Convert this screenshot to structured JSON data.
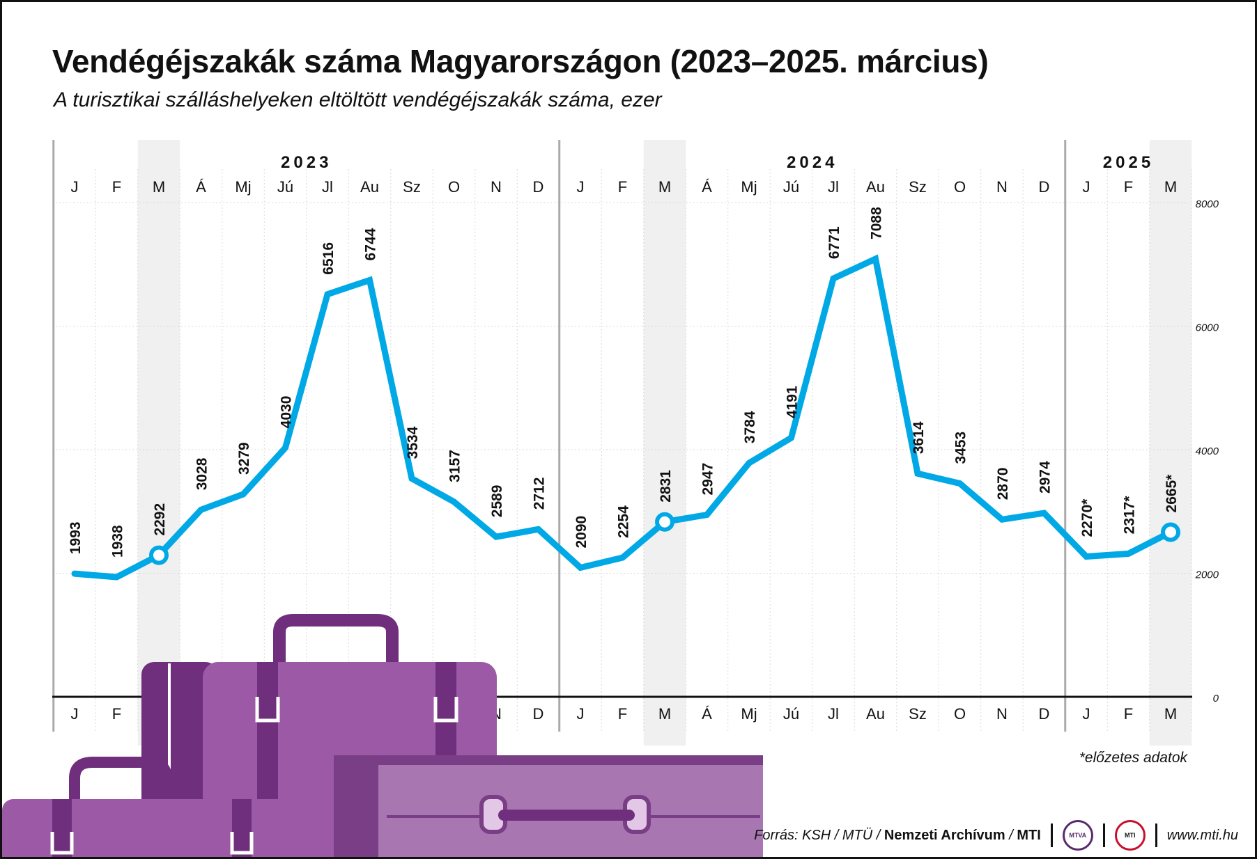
{
  "title": "Vendégéjszakák száma Magyarországon (2023–2025. március)",
  "subtitle": "A turisztikai szálláshelyeken eltöltött vendégéjszakák száma, ezer",
  "footnote": "*előzetes adatok",
  "footer": {
    "source_prefix": "Forrás: KSH / MTÜ /",
    "source_bold": "Nemzeti Archívum",
    "source_sep": "/",
    "source_mti": "MTI",
    "logo_mtva": "MTVA",
    "logo_mti": "MTI",
    "url": "www.mti.hu"
  },
  "colors": {
    "line": "#00a9e6",
    "highlight_band": "#f0f0f0",
    "grid": "#d9d9d9",
    "suitcase_main": "#9c5aa6",
    "suitcase_dark": "#6f2f7d",
    "suitcase_light": "#a877b1"
  },
  "icons": [
    "suitcase-illustration",
    "mtva-logo",
    "mti-logo"
  ],
  "chart_data": {
    "type": "line",
    "title": "Vendégéjszakák száma Magyarországon (2023–2025. március)",
    "ylabel": "",
    "xlabel": "",
    "ylim": [
      0,
      8000
    ],
    "yticks": [
      0,
      2000,
      4000,
      6000,
      8000
    ],
    "years": [
      {
        "label": "2023",
        "months": 12
      },
      {
        "label": "2024",
        "months": 12
      },
      {
        "label": "2025",
        "months": 3
      }
    ],
    "categories": [
      "J",
      "F",
      "M",
      "Á",
      "Mj",
      "Jú",
      "Jl",
      "Au",
      "Sz",
      "O",
      "N",
      "D",
      "J",
      "F",
      "M",
      "Á",
      "Mj",
      "Jú",
      "Jl",
      "Au",
      "Sz",
      "O",
      "N",
      "D",
      "J",
      "F",
      "M"
    ],
    "highlighted_categories": [
      2,
      14,
      26
    ],
    "series": [
      {
        "values": [
          1993,
          1938,
          2292,
          3028,
          3279,
          4030,
          6516,
          6744,
          3534,
          3157,
          2589,
          2712,
          2090,
          2254,
          2831,
          2947,
          3784,
          4191,
          6771,
          7088,
          3614,
          3453,
          2870,
          2974,
          2270,
          2317,
          2665
        ],
        "labels": [
          "1993",
          "1938",
          "2292",
          "3028",
          "3279",
          "4030",
          "6516",
          "6744",
          "3534",
          "3157",
          "2589",
          "2712",
          "2090",
          "2254",
          "2831",
          "2947",
          "3784",
          "4191",
          "6771",
          "7088",
          "3614",
          "3453",
          "2870",
          "2974",
          "2270*",
          "2317*",
          "2665*"
        ]
      }
    ],
    "grid": true,
    "legend": "none"
  }
}
